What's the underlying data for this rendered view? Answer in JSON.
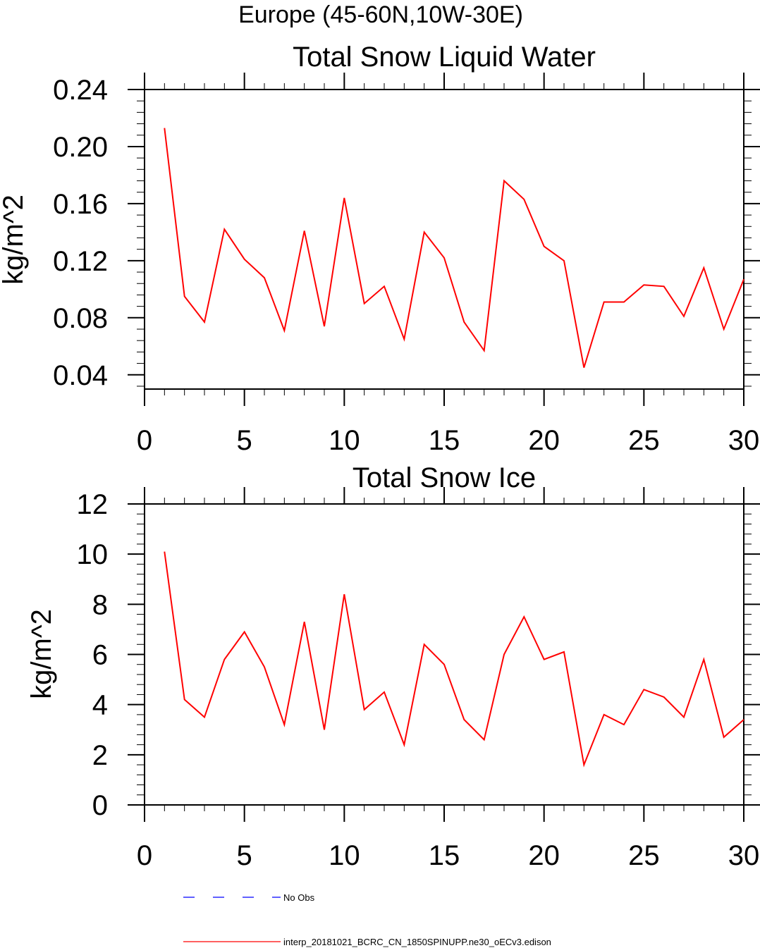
{
  "figure_title": "Europe (45-60N,10W-30E)",
  "chart_data": [
    {
      "type": "line",
      "title": "Total Snow Liquid Water",
      "xlabel": "",
      "ylabel": "kg/m^2",
      "xlim": [
        0,
        30
      ],
      "ylim": [
        0.03,
        0.24
      ],
      "xticks": [
        0,
        5,
        10,
        15,
        20,
        25,
        30
      ],
      "xtick_labels": [
        "0",
        "5",
        "10",
        "15",
        "20",
        "25",
        "30"
      ],
      "yticks": [
        0.04,
        0.08,
        0.12,
        0.16,
        0.2,
        0.24
      ],
      "ytick_labels": [
        "0.04",
        "0.08",
        "0.12",
        "0.16",
        "0.20",
        "0.24"
      ],
      "y_minor_step": 0.008,
      "series": [
        {
          "name": "interp_20181021_BCRC_CN_1850SPINUPP.ne30_oECv3.edison",
          "color": "#ff0000",
          "x": [
            1,
            2,
            3,
            4,
            5,
            6,
            7,
            8,
            9,
            10,
            11,
            12,
            13,
            14,
            15,
            16,
            17,
            18,
            19,
            20,
            21,
            22,
            23,
            24,
            25,
            26,
            27,
            28,
            29,
            30
          ],
          "values": [
            0.213,
            0.095,
            0.077,
            0.142,
            0.121,
            0.108,
            0.071,
            0.141,
            0.074,
            0.164,
            0.09,
            0.102,
            0.065,
            0.14,
            0.122,
            0.077,
            0.057,
            0.176,
            0.163,
            0.13,
            0.12,
            0.045,
            0.091,
            0.091,
            0.103,
            0.102,
            0.081,
            0.115,
            0.072,
            0.107
          ]
        }
      ]
    },
    {
      "type": "line",
      "title": "Total Snow Ice",
      "xlabel": "",
      "ylabel": "kg/m^2",
      "xlim": [
        0,
        30
      ],
      "ylim": [
        0,
        12
      ],
      "xticks": [
        0,
        5,
        10,
        15,
        20,
        25,
        30
      ],
      "xtick_labels": [
        "0",
        "5",
        "10",
        "15",
        "20",
        "25",
        "30"
      ],
      "yticks": [
        0,
        2,
        4,
        6,
        8,
        10,
        12
      ],
      "ytick_labels": [
        "0",
        "2",
        "4",
        "6",
        "8",
        "10",
        "12"
      ],
      "y_minor_step": 0.4,
      "series": [
        {
          "name": "interp_20181021_BCRC_CN_1850SPINUPP.ne30_oECv3.edison",
          "color": "#ff0000",
          "x": [
            1,
            2,
            3,
            4,
            5,
            6,
            7,
            8,
            9,
            10,
            11,
            12,
            13,
            14,
            15,
            16,
            17,
            18,
            19,
            20,
            21,
            22,
            23,
            24,
            25,
            26,
            27,
            28,
            29,
            30
          ],
          "values": [
            10.1,
            4.2,
            3.5,
            5.8,
            6.9,
            5.5,
            3.2,
            7.3,
            3.0,
            8.4,
            3.8,
            4.5,
            2.4,
            6.4,
            5.6,
            3.4,
            2.6,
            6.0,
            7.5,
            5.8,
            6.1,
            1.6,
            3.6,
            3.2,
            4.6,
            4.3,
            3.5,
            5.8,
            2.7,
            3.4
          ]
        }
      ]
    }
  ],
  "legend": [
    {
      "label": "No Obs",
      "color": "#0000ff",
      "style": "dashed"
    },
    {
      "label": "interp_20181021_BCRC_CN_1850SPINUPP.ne30_oECv3.edison",
      "color": "#ff0000",
      "style": "solid"
    }
  ]
}
